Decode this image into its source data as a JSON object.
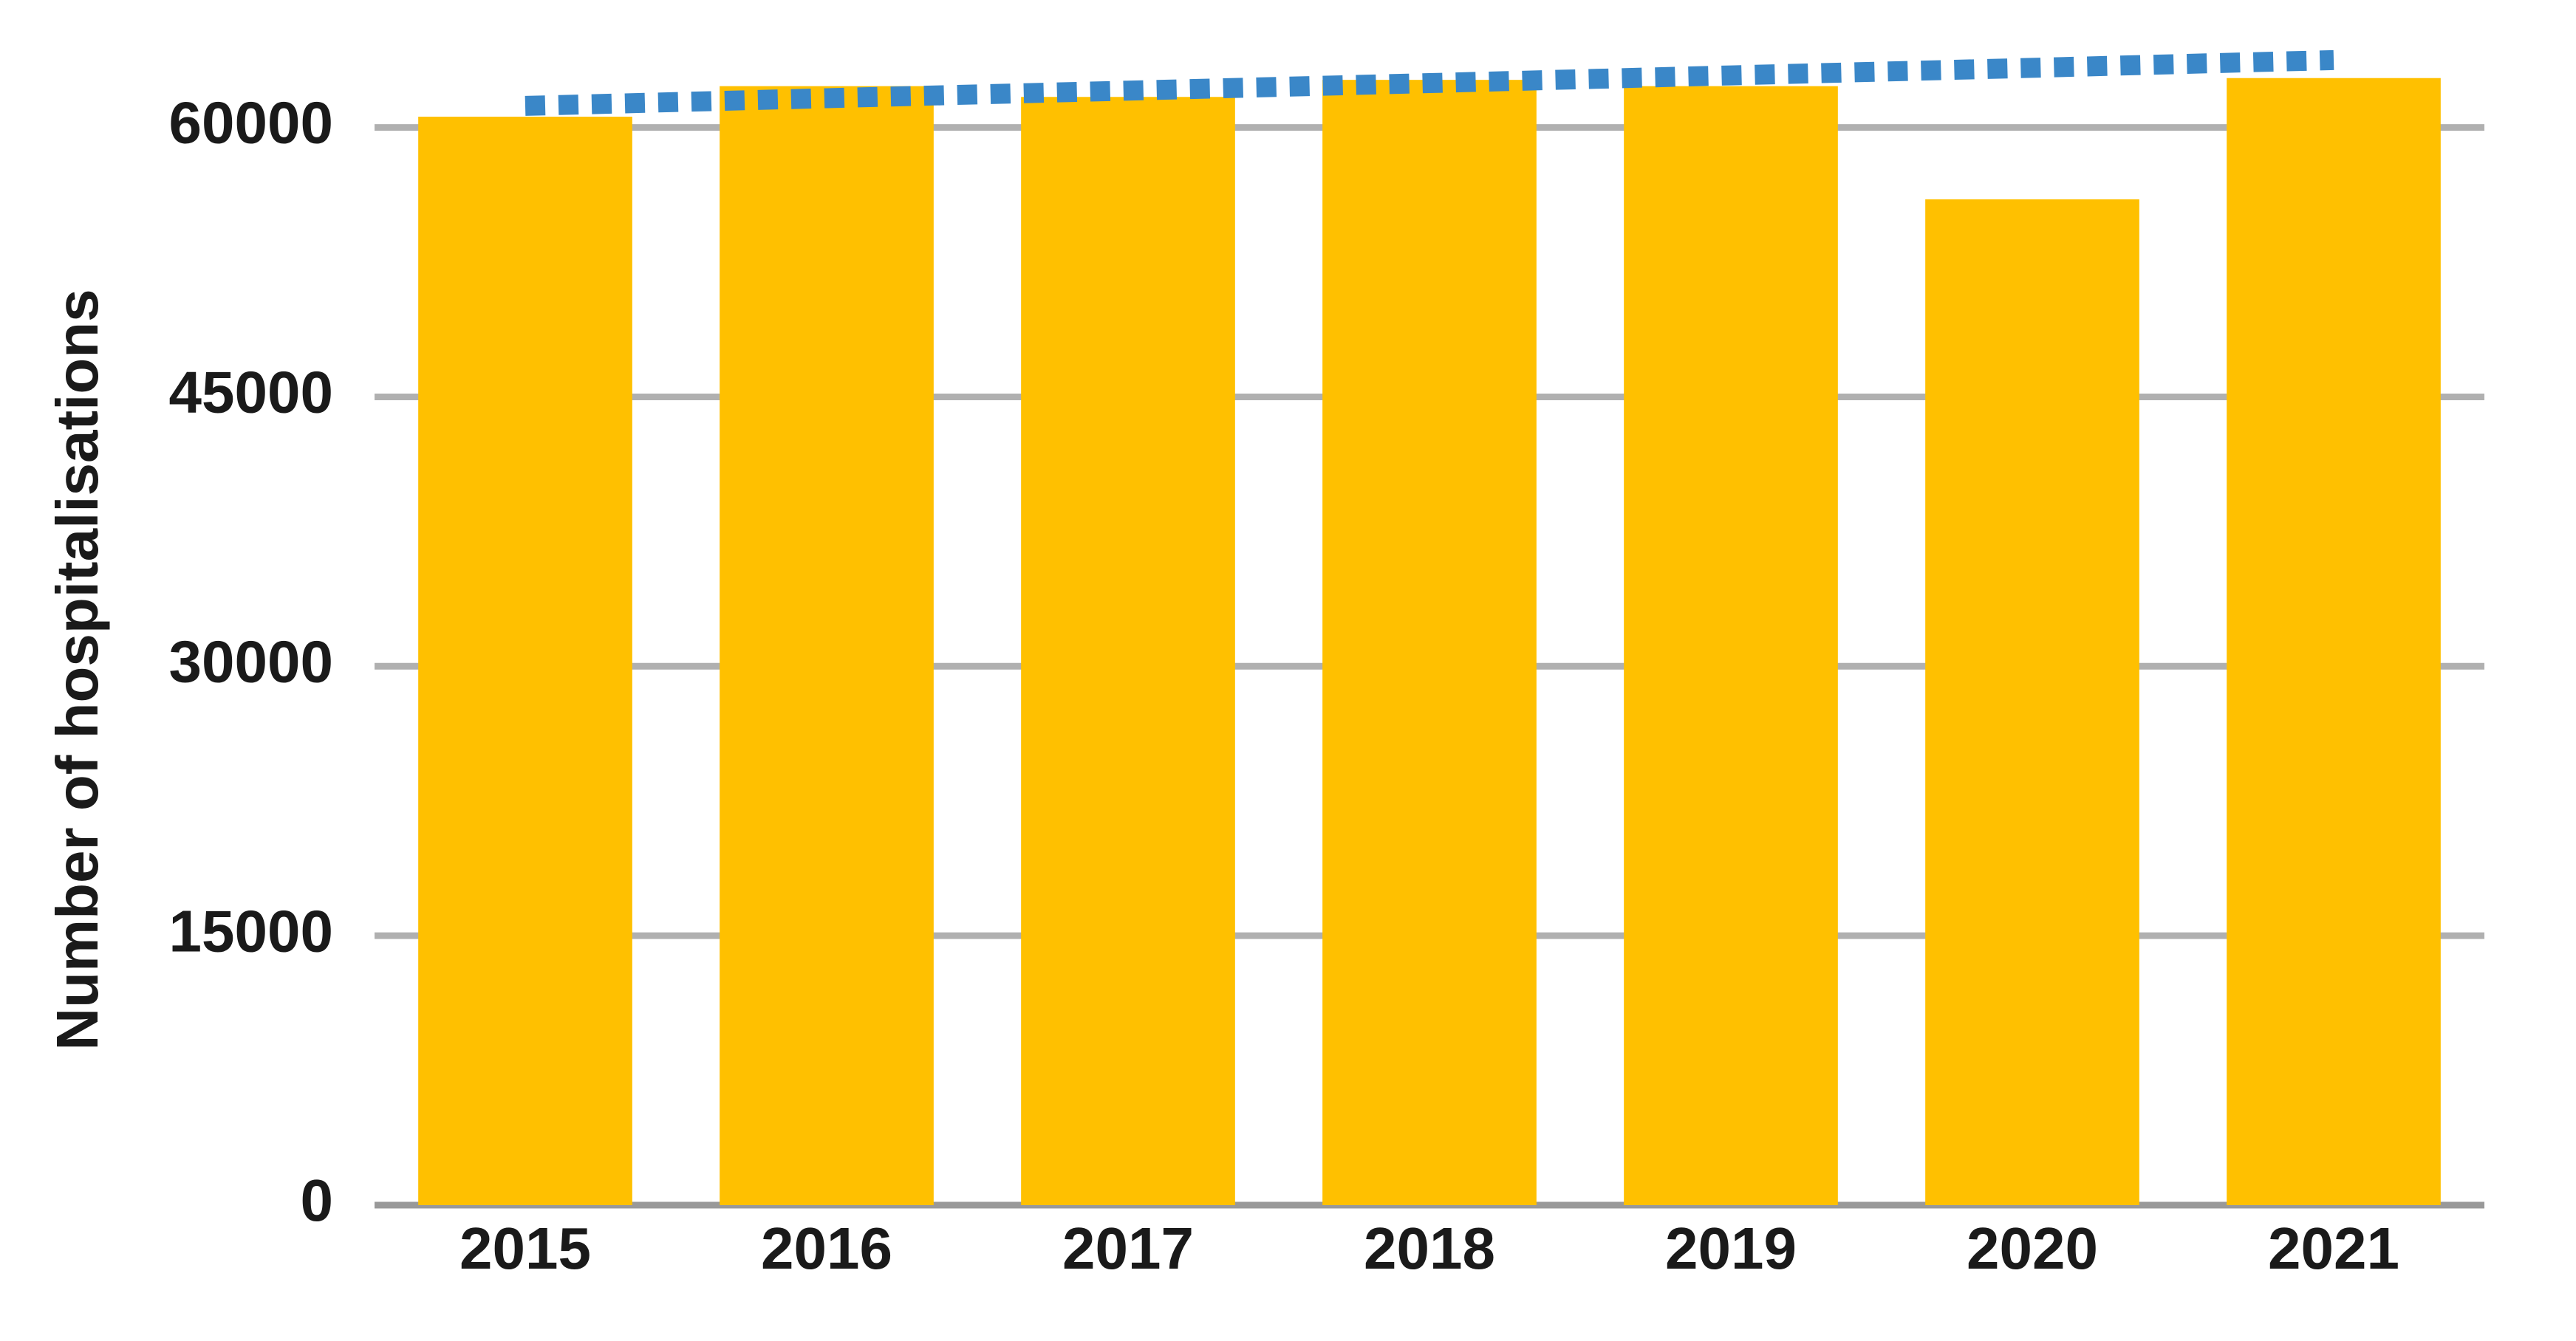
{
  "chart_data": {
    "type": "bar",
    "y_label": "Number of hospitalisations",
    "categories": [
      "2015",
      "2016",
      "2017",
      "2018",
      "2019",
      "2020",
      "2021"
    ],
    "series": [
      {
        "type": "bar",
        "color": "#ffc000",
        "values": [
          60600,
          62300,
          61700,
          62650,
          62300,
          56000,
          62750
        ]
      },
      {
        "type": "line",
        "color": "#3a87c8",
        "dash": "dotted",
        "values": [
          61200,
          61630,
          62050,
          62470,
          62900,
          63320,
          63750
        ]
      }
    ],
    "ylim": [
      0,
      65000
    ],
    "yticks": [
      0,
      15000,
      30000,
      45000,
      60000
    ],
    "grid": true
  }
}
